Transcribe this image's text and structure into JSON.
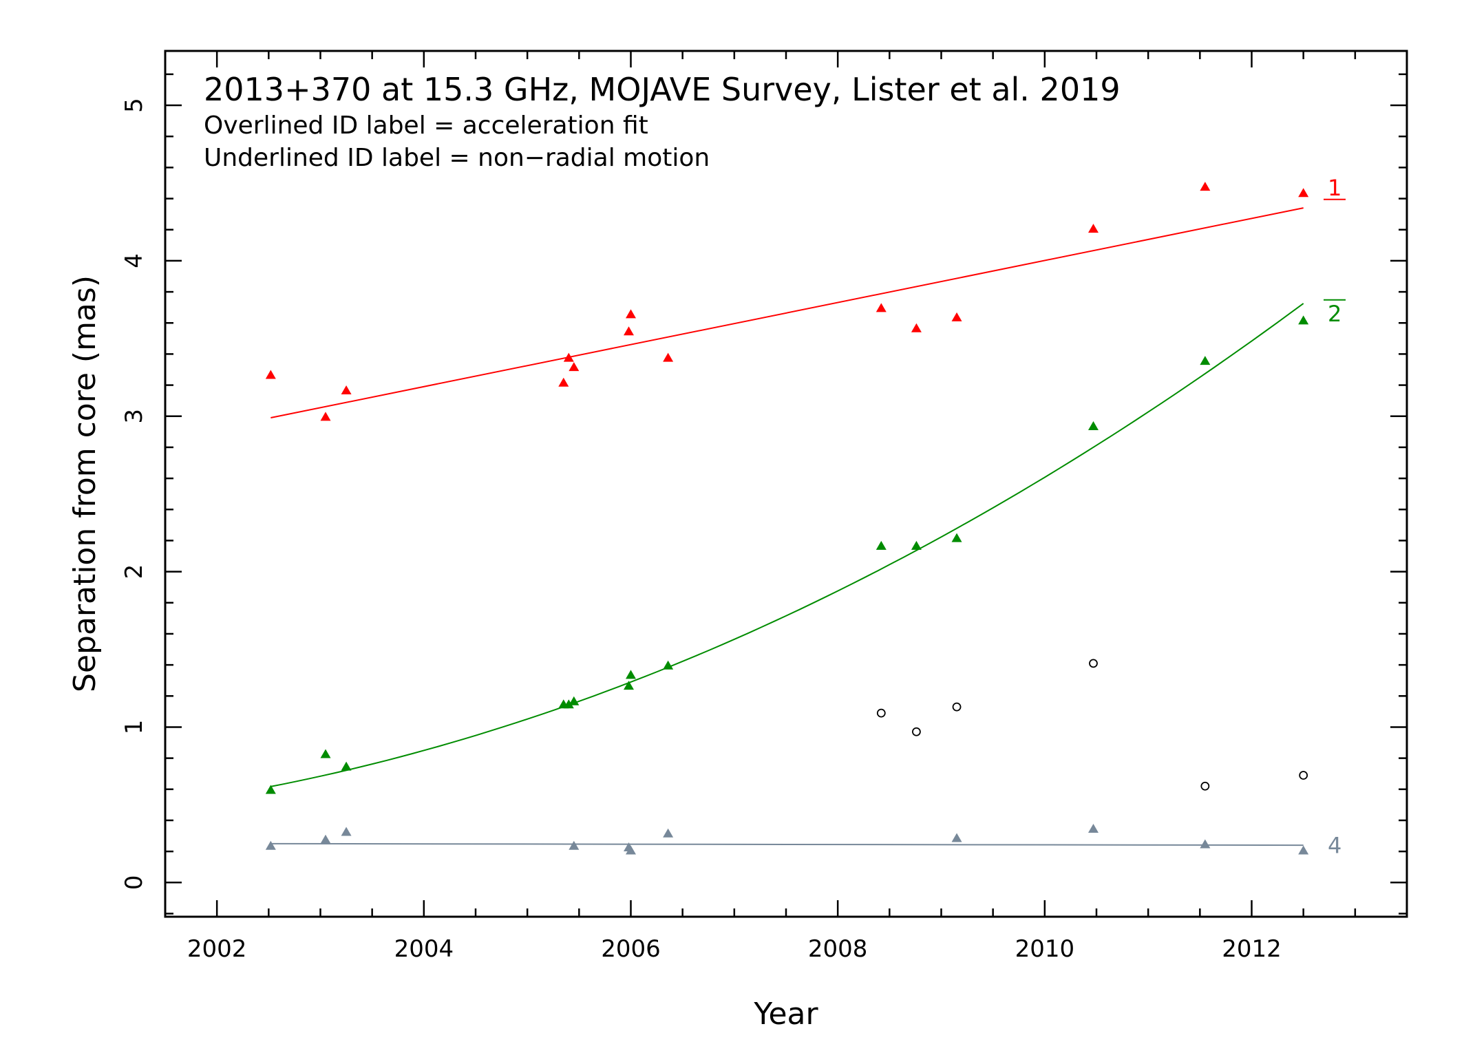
{
  "chart_data": {
    "type": "scatter",
    "title": "2013+370 at 15.3 GHz, MOJAVE Survey, Lister et al. 2019",
    "subtitle_lines": [
      "Overlined ID label = acceleration fit",
      "Underlined ID label = non−radial motion"
    ],
    "xlabel": "Year",
    "ylabel": "Separation from core (mas)",
    "xlim": [
      2001.5,
      2013.5
    ],
    "ylim": [
      -0.22,
      5.35
    ],
    "x_ticks": [
      2002,
      2004,
      2006,
      2008,
      2010,
      2012
    ],
    "x_tick_labels": [
      "2002",
      "2004",
      "2006",
      "2008",
      "2010",
      "2012"
    ],
    "y_ticks": [
      0,
      1,
      2,
      3,
      4,
      5
    ],
    "y_tick_labels": [
      "0",
      "1",
      "2",
      "3",
      "4",
      "5"
    ],
    "grid": false,
    "series": [
      {
        "name": "1",
        "color": "#ff0000",
        "label_style": "underline",
        "marker": "triangle",
        "points": [
          [
            2002.52,
            3.26
          ],
          [
            2003.05,
            2.99
          ],
          [
            2003.25,
            3.16
          ],
          [
            2005.35,
            3.21
          ],
          [
            2005.4,
            3.37
          ],
          [
            2005.45,
            3.31
          ],
          [
            2005.98,
            3.54
          ],
          [
            2006.0,
            3.65
          ],
          [
            2006.36,
            3.37
          ],
          [
            2008.42,
            3.69
          ],
          [
            2008.76,
            3.56
          ],
          [
            2009.15,
            3.63
          ],
          [
            2010.47,
            4.2
          ],
          [
            2011.55,
            4.47
          ],
          [
            2012.5,
            4.43
          ]
        ],
        "fit": {
          "kind": "linear",
          "x_range": [
            2002.52,
            2012.5
          ],
          "endpoints": [
            [
              2002.52,
              2.99
            ],
            [
              2012.5,
              4.34
            ]
          ]
        }
      },
      {
        "name": "2",
        "color": "#008c00",
        "label_style": "overline",
        "marker": "triangle",
        "points": [
          [
            2002.52,
            0.59
          ],
          [
            2003.05,
            0.82
          ],
          [
            2003.25,
            0.74
          ],
          [
            2005.35,
            1.14
          ],
          [
            2005.4,
            1.14
          ],
          [
            2005.45,
            1.16
          ],
          [
            2005.98,
            1.26
          ],
          [
            2006.0,
            1.33
          ],
          [
            2006.36,
            1.39
          ],
          [
            2008.42,
            2.16
          ],
          [
            2008.76,
            2.16
          ],
          [
            2009.15,
            2.21
          ],
          [
            2010.47,
            2.93
          ],
          [
            2011.55,
            3.35
          ],
          [
            2012.5,
            3.61
          ]
        ],
        "fit": {
          "kind": "quadratic",
          "x_range": [
            2002.52,
            2012.5
          ],
          "samples": [
            [
              2002.52,
              0.62
            ],
            [
              2003.25,
              0.73
            ],
            [
              2005.4,
              1.13
            ],
            [
              2006.0,
              1.27
            ],
            [
              2008.0,
              1.9
            ],
            [
              2010.0,
              2.61
            ],
            [
              2012.5,
              3.72
            ]
          ]
        }
      },
      {
        "name": "4",
        "color": "#778899",
        "label_style": "plain",
        "marker": "triangle",
        "points": [
          [
            2002.52,
            0.23
          ],
          [
            2003.05,
            0.27
          ],
          [
            2003.25,
            0.32
          ],
          [
            2005.45,
            0.23
          ],
          [
            2005.98,
            0.22
          ],
          [
            2006.0,
            0.2
          ],
          [
            2006.36,
            0.31
          ],
          [
            2009.15,
            0.28
          ],
          [
            2010.47,
            0.34
          ],
          [
            2011.55,
            0.24
          ],
          [
            2012.5,
            0.2
          ]
        ],
        "fit": {
          "kind": "linear",
          "x_range": [
            2002.52,
            2012.5
          ],
          "endpoints": [
            [
              2002.52,
              0.25
            ],
            [
              2012.5,
              0.24
            ]
          ]
        }
      },
      {
        "color": "#000000",
        "marker": "open-circle",
        "points": [
          [
            2008.42,
            1.09
          ],
          [
            2008.76,
            0.97
          ],
          [
            2009.15,
            1.13
          ],
          [
            2010.47,
            1.41
          ],
          [
            2011.55,
            0.62
          ],
          [
            2012.5,
            0.69
          ]
        ]
      }
    ]
  }
}
